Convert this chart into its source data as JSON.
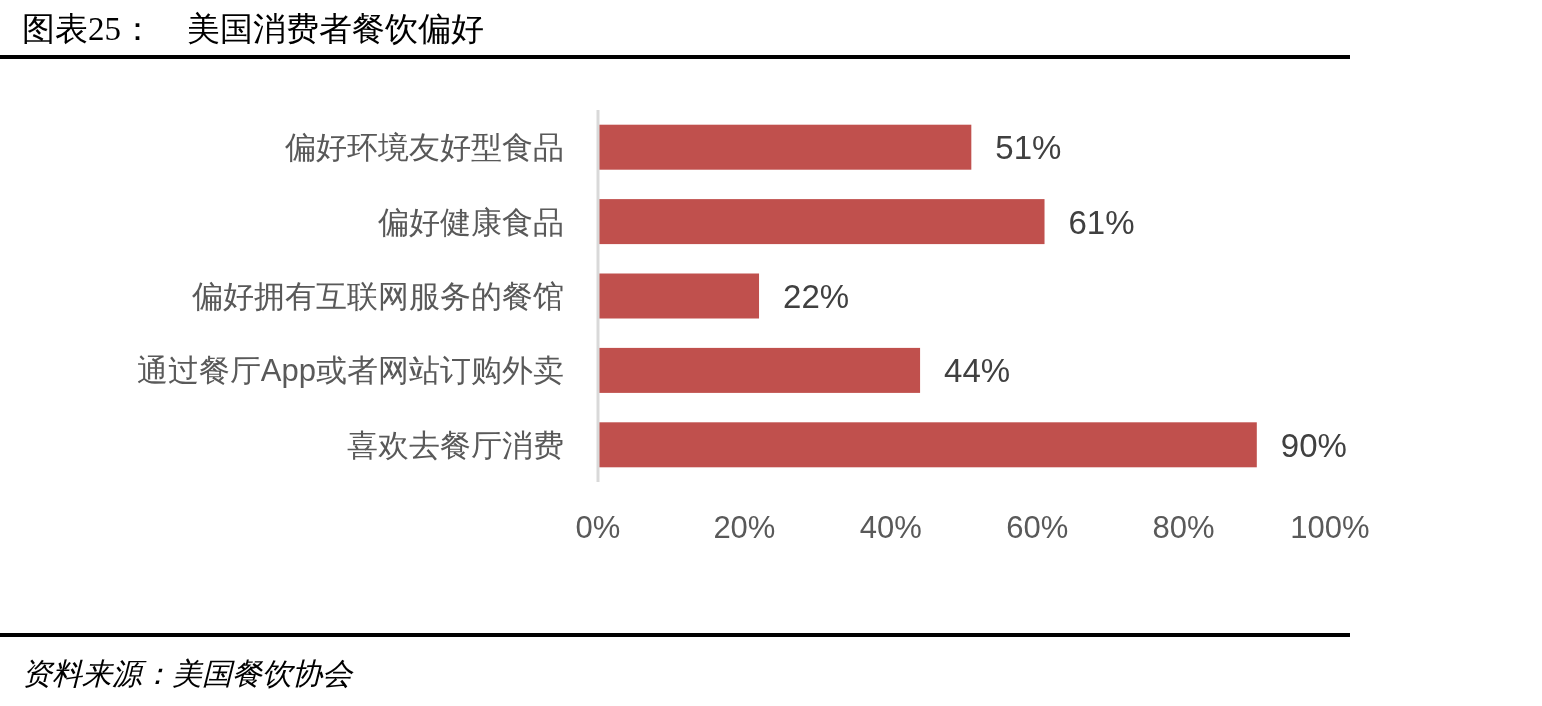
{
  "chart_data": {
    "type": "bar",
    "orientation": "horizontal",
    "title": "图表25：　美国消费者餐饮偏好",
    "categories": [
      "偏好环境友好型食品",
      "偏好健康食品",
      "偏好拥有互联网服务的餐馆",
      "通过餐厅App或者网站订购外卖",
      "喜欢去餐厅消费"
    ],
    "values": [
      51,
      61,
      22,
      44,
      90
    ],
    "value_labels": [
      "51%",
      "61%",
      "22%",
      "44%",
      "90%"
    ],
    "color": "#c0504d",
    "xlim": [
      0,
      100
    ],
    "xticks": [
      {
        "value": 0,
        "label": "0%"
      },
      {
        "value": 20,
        "label": "20%"
      },
      {
        "value": 40,
        "label": "40%"
      },
      {
        "value": 60,
        "label": "60%"
      },
      {
        "value": 80,
        "label": "80%"
      },
      {
        "value": 100,
        "label": "100%"
      }
    ],
    "annotations": [
      "资料来源：美国餐饮协会"
    ]
  }
}
